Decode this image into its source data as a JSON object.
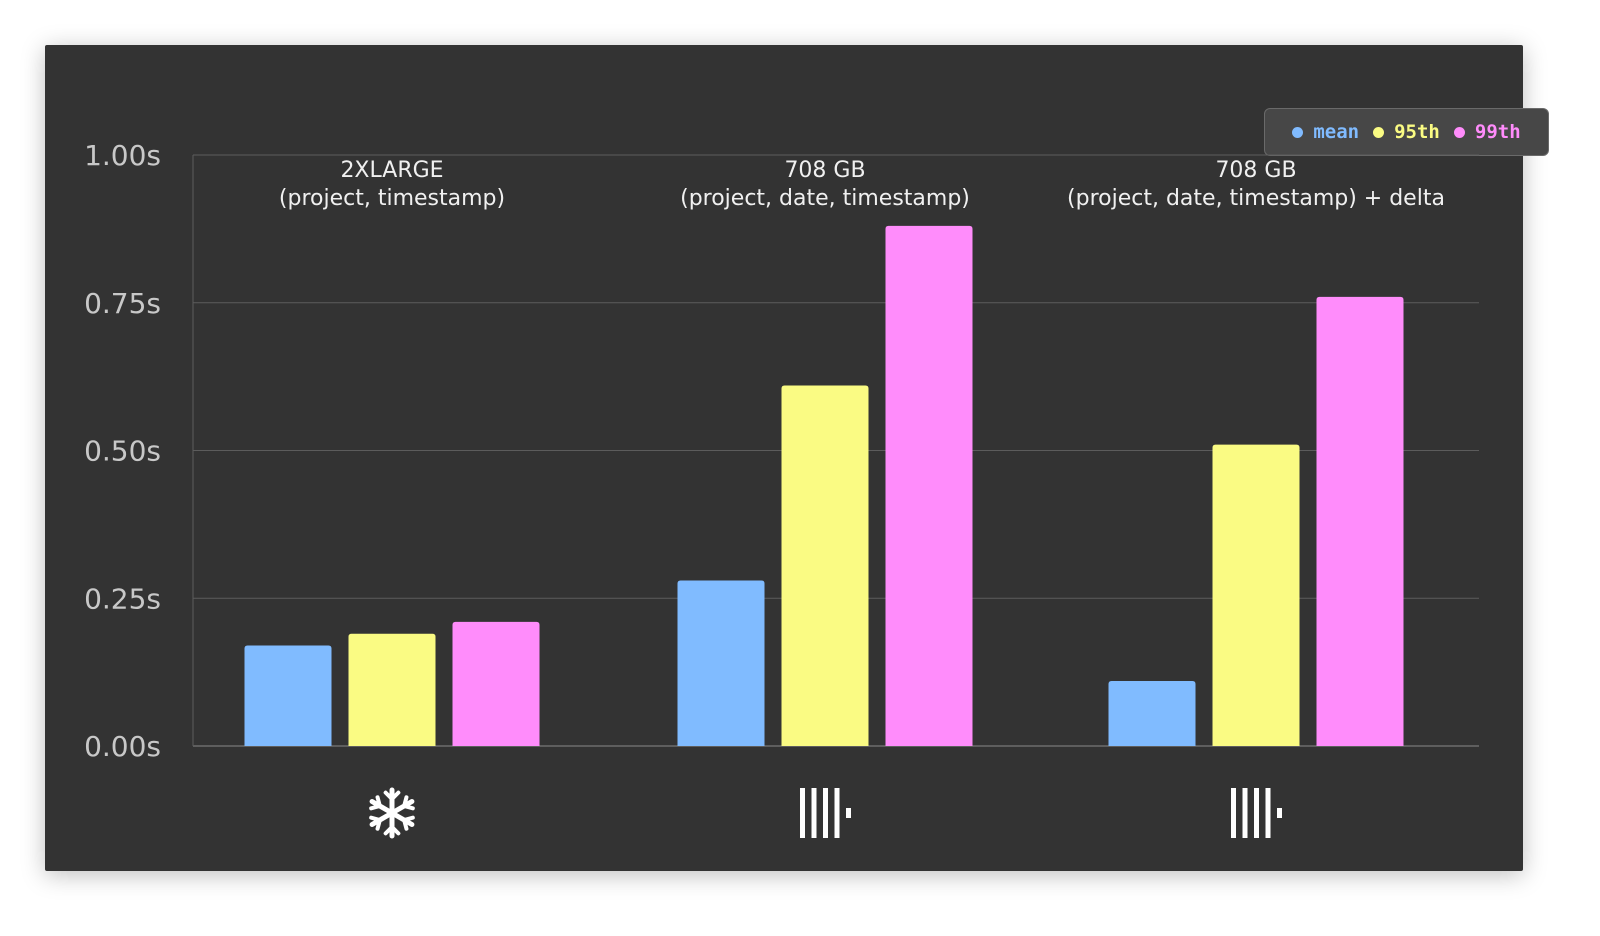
{
  "chart_data": {
    "type": "bar",
    "categories": [
      {
        "title": "2XLARGE",
        "subtitle": "(project, timestamp)",
        "icon": "snowflake-icon"
      },
      {
        "title": "708 GB",
        "subtitle": "(project, date, timestamp)",
        "icon": "clickhouse-logo-icon"
      },
      {
        "title": "708 GB",
        "subtitle": "(project, date, timestamp) + delta",
        "icon": "clickhouse-logo-icon"
      }
    ],
    "series": [
      {
        "name": "mean",
        "color": "#80bbff",
        "values": [
          0.17,
          0.28,
          0.11
        ]
      },
      {
        "name": "95th",
        "color": "#fafb83",
        "values": [
          0.19,
          0.61,
          0.51
        ]
      },
      {
        "name": "99th",
        "color": "#ff8cfb",
        "values": [
          0.21,
          0.88,
          0.76
        ]
      }
    ],
    "yticks": [
      "0.00s",
      "0.25s",
      "0.50s",
      "0.75s",
      "1.00s"
    ],
    "ylim": [
      0,
      1.0
    ],
    "grid": true,
    "legend": "top-right",
    "background": "#333333"
  }
}
